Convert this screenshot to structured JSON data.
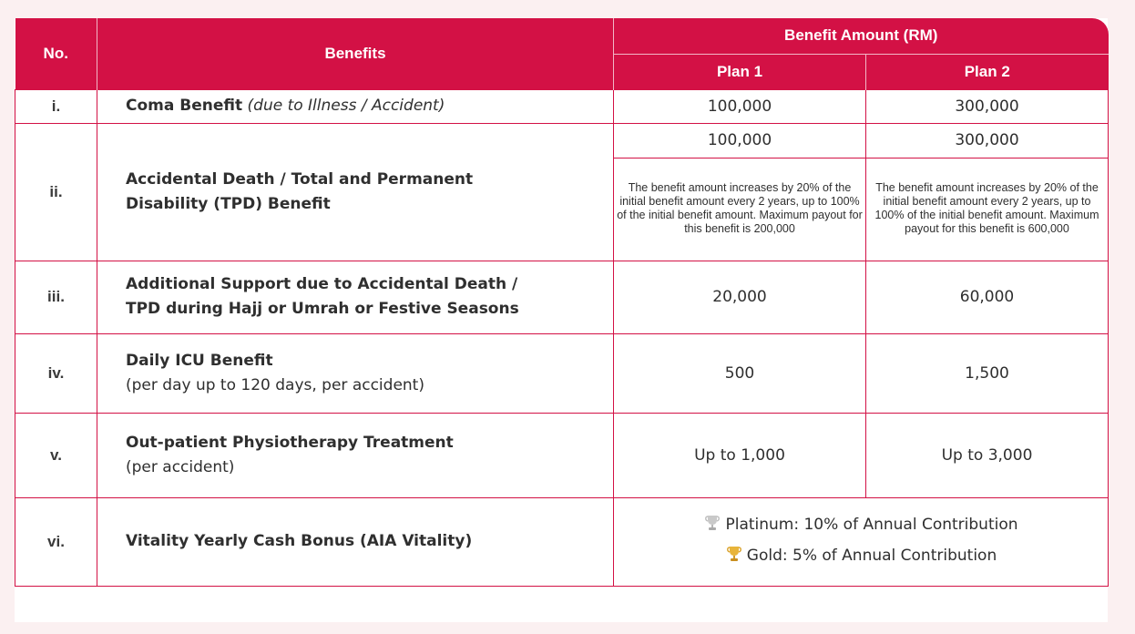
{
  "header": {
    "no": "No.",
    "benefits": "Benefits",
    "benefit_amount": "Benefit Amount (RM)",
    "plan1": "Plan 1",
    "plan2": "Plan 2"
  },
  "rows": [
    {
      "no": "i.",
      "title": "Coma Benefit",
      "note": "(due to Illness / Accident)",
      "plan1": "100,000",
      "plan2": "300,000"
    },
    {
      "no": "ii.",
      "title_line1": "Accidental Death / Total and Permanent",
      "title_line2": "Disability (TPD) Benefit",
      "plan1": "100,000",
      "plan2": "300,000",
      "plan1_note": "The benefit amount increases by 20% of the initial benefit amount every 2 years, up to 100% of the initial benefit amount. Maximum payout for this benefit is 200,000",
      "plan2_note": "The benefit amount increases by 20% of the initial benefit amount every 2 years, up to 100% of the initial benefit amount. Maximum payout for this benefit is 600,000"
    },
    {
      "no": "iii.",
      "title_line1": "Additional Support due to Accidental Death /",
      "title_line2": "TPD during Hajj or Umrah or Festive Seasons",
      "plan1": "20,000",
      "plan2": "60,000"
    },
    {
      "no": "iv.",
      "title": "Daily ICU Benefit",
      "sub": "(per day up to 120 days, per accident)",
      "plan1": "500",
      "plan2": "1,500"
    },
    {
      "no": "v.",
      "title": "Out-patient Physiotherapy Treatment",
      "sub": "(per accident)",
      "plan1": "Up to 1,000",
      "plan2": "Up to 3,000"
    },
    {
      "no": "vi.",
      "title": "Vitality Yearly Cash Bonus (AIA Vitality)",
      "platinum": "Platinum: 10% of Annual Contribution",
      "gold": "Gold: 5% of Annual Contribution"
    }
  ],
  "colors": {
    "accent": "#d31145",
    "background": "#fbf0f1",
    "platinum_trophy": "#c9c9c9",
    "gold_trophy": "#e8b43a"
  },
  "icons": {
    "platinum": "trophy-icon",
    "gold": "trophy-icon"
  }
}
